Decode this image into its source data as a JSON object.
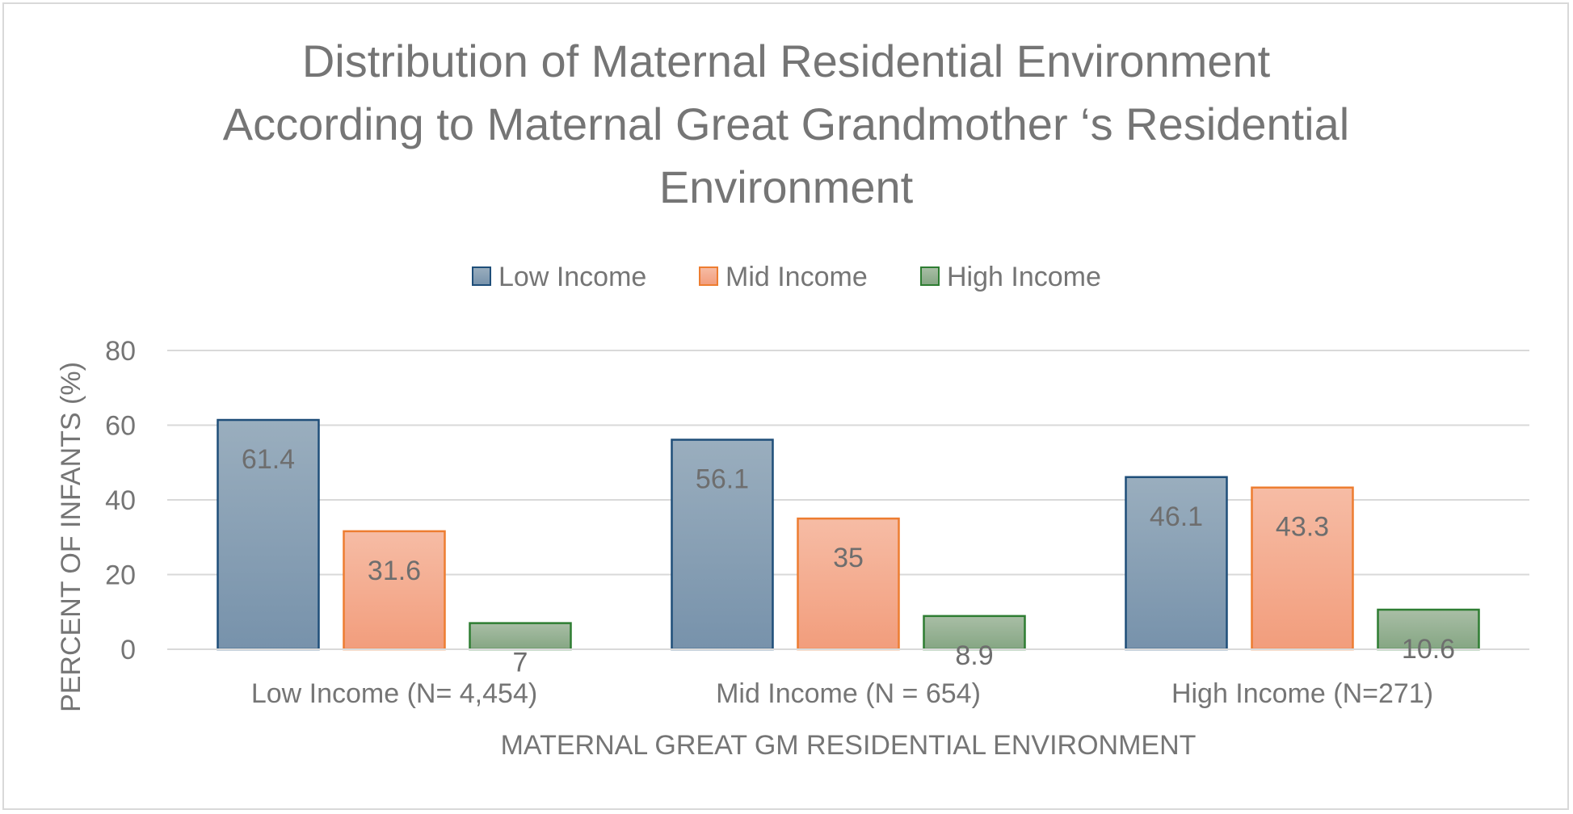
{
  "chart_data": {
    "type": "bar",
    "title_lines": [
      "Distribution of Maternal Residential Environment",
      "According to Maternal Great Grandmother ‘s Residential",
      "Environment"
    ],
    "xlabel": "MATERNAL GREAT GM RESIDENTIAL ENVIRONMENT",
    "ylabel": "PERCENT OF INFANTS (%)",
    "categories": [
      "Low Income (N= 4,454)",
      "Mid Income (N = 654)",
      "High Income (N=271)"
    ],
    "ylim": [
      0,
      80
    ],
    "yticks": [
      "0",
      "20",
      "40",
      "60",
      "80"
    ],
    "grid": true,
    "legend_position": "top",
    "series": [
      {
        "name": "Low Income",
        "values": [
          61.4,
          56.1,
          46.1
        ],
        "labels": [
          "61.4",
          "56.1",
          "46.1"
        ],
        "color_top": "#9aaebe",
        "color_bottom": "#7792ab",
        "stroke": "#1f4e79"
      },
      {
        "name": "Mid Income",
        "values": [
          31.6,
          35,
          43.3
        ],
        "labels": [
          "31.6",
          "35",
          "43.3"
        ],
        "color_top": "#f6bca5",
        "color_bottom": "#f29d7c",
        "stroke": "#ed7d31"
      },
      {
        "name": "High Income",
        "values": [
          7,
          8.9,
          10.6
        ],
        "labels": [
          "7",
          "8.9",
          "10.6"
        ],
        "color_top": "#a9bea6",
        "color_bottom": "#85a683",
        "stroke": "#2e7d32"
      }
    ]
  }
}
